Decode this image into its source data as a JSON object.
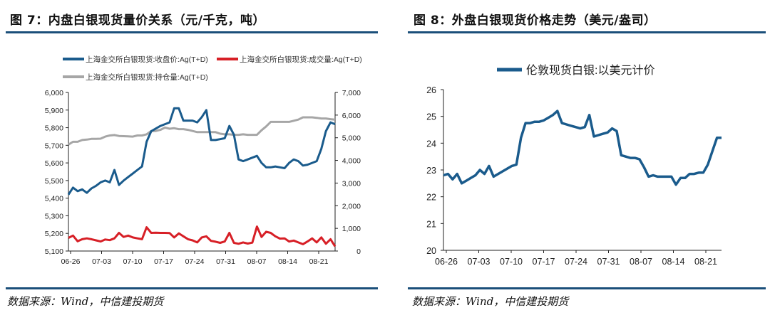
{
  "figures": {
    "left_title": "图 7：内盘白银现货量价关系（元/千克，吨）",
    "right_title": "图 8：外盘白银现货价格走势（美元/盎司）",
    "left_source": "数据来源：Wind，中信建投期货",
    "right_source": "数据来源：Wind，中信建投期货"
  },
  "chart_data": [
    {
      "type": "line",
      "x_ticks": [
        "06-26",
        "07-03",
        "07-10",
        "07-17",
        "07-24",
        "07-31",
        "08-07",
        "08-14",
        "08-21"
      ],
      "y_left": {
        "range": [
          5100,
          6000
        ],
        "ticks": [
          "5,100",
          "5,200",
          "5,300",
          "5,400",
          "5,500",
          "5,600",
          "5,700",
          "5,800",
          "5,900",
          "6,000"
        ]
      },
      "y_right": {
        "range": [
          0,
          7000
        ],
        "ticks": [
          "0",
          "1,000",
          "2,000",
          "3,000",
          "4,000",
          "5,000",
          "6,000",
          "7,000"
        ]
      },
      "series": [
        {
          "name": "上海金交所白银现货:收盘价:Ag(T+D)",
          "axis": "left",
          "color": "#1a5b8c",
          "values": [
            5420,
            5460,
            5440,
            5450,
            5430,
            5455,
            5470,
            5490,
            5500,
            5490,
            5560,
            5475,
            5500,
            5520,
            5540,
            5560,
            5580,
            5720,
            5780,
            5795,
            5810,
            5820,
            5830,
            5910,
            5910,
            5840,
            5840,
            5840,
            5830,
            5860,
            5900,
            5730,
            5730,
            5735,
            5740,
            5810,
            5760,
            5620,
            5610,
            5620,
            5630,
            5640,
            5600,
            5575,
            5575,
            5580,
            5575,
            5570,
            5600,
            5620,
            5610,
            5585,
            5590,
            5600,
            5610,
            5680,
            5780,
            5830,
            5820
          ]
        },
        {
          "name": "上海金交所白银现货:成交量:Ag(T+D)",
          "axis": "right",
          "color": "#d71f26",
          "values": [
            580,
            680,
            430,
            520,
            560,
            520,
            470,
            420,
            510,
            480,
            560,
            800,
            620,
            680,
            600,
            560,
            520,
            1050,
            800,
            810,
            800,
            800,
            790,
            600,
            780,
            650,
            520,
            470,
            380,
            600,
            650,
            450,
            410,
            360,
            420,
            800,
            360,
            320,
            380,
            330,
            370,
            1080,
            620,
            850,
            800,
            650,
            550,
            560,
            420,
            460,
            380,
            300,
            420,
            560,
            380,
            600,
            320,
            520,
            200
          ]
        },
        {
          "name": "上海金交所白银现货:持仓量:Ag(T+D)",
          "axis": "right",
          "color": "#a6a6a6",
          "values": [
            4700,
            4820,
            4820,
            4900,
            4920,
            4950,
            4950,
            4960,
            5050,
            5100,
            5120,
            5080,
            5070,
            5060,
            5050,
            5100,
            5100,
            5150,
            5300,
            5300,
            5350,
            5450,
            5400,
            5420,
            5380,
            5380,
            5350,
            5300,
            5250,
            5250,
            5250,
            5250,
            5250,
            5180,
            5150,
            5150,
            5130,
            5130,
            5150,
            5130,
            5130,
            5130,
            5330,
            5500,
            5700,
            5700,
            5700,
            5700,
            5700,
            5750,
            5800,
            5900,
            5900,
            5900,
            5880,
            5850,
            5850,
            5820,
            5800
          ]
        }
      ]
    },
    {
      "type": "line",
      "x_ticks": [
        "06-26",
        "07-03",
        "07-10",
        "07-17",
        "07-24",
        "07-31",
        "08-07",
        "08-14",
        "08-21"
      ],
      "y_left": {
        "range": [
          20,
          26
        ],
        "ticks": [
          "20",
          "21",
          "22",
          "23",
          "24",
          "25",
          "26"
        ]
      },
      "series": [
        {
          "name": "伦敦现货白银:以美元计价",
          "axis": "left",
          "color": "#1a5b8c",
          "values": [
            22.8,
            22.85,
            22.65,
            22.85,
            22.5,
            22.6,
            22.7,
            22.8,
            23.0,
            22.85,
            23.15,
            22.75,
            22.85,
            22.95,
            23.05,
            23.15,
            23.2,
            24.2,
            24.75,
            24.75,
            24.8,
            24.8,
            24.85,
            24.95,
            25.05,
            25.2,
            24.75,
            24.7,
            24.65,
            24.6,
            24.55,
            24.6,
            25.05,
            24.25,
            24.3,
            24.35,
            24.4,
            24.55,
            24.45,
            23.55,
            23.5,
            23.45,
            23.45,
            23.4,
            23.1,
            22.75,
            22.8,
            22.75,
            22.75,
            22.75,
            22.75,
            22.45,
            22.7,
            22.7,
            22.85,
            22.85,
            22.9,
            22.9,
            23.2,
            23.7,
            24.2,
            24.2
          ]
        }
      ]
    }
  ]
}
